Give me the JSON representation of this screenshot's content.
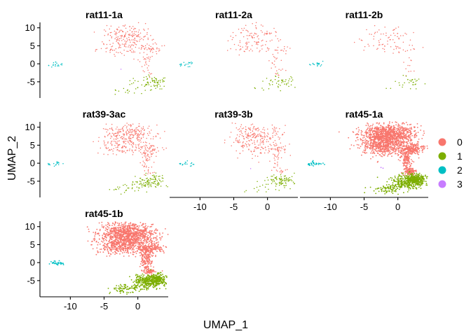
{
  "chart_data": {
    "type": "scatter",
    "xlabel": "UMAP_1",
    "ylabel": "UMAP_2",
    "xlim": [
      -14.5,
      4.5
    ],
    "ylim": [
      -9.5,
      11.5
    ],
    "x_ticks": [
      -10,
      -5,
      0
    ],
    "y_ticks": [
      10,
      5,
      0,
      -5
    ],
    "legend": {
      "position": "right",
      "entries": [
        "0",
        "1",
        "2",
        "3"
      ]
    },
    "colors": {
      "0": "#F8766D",
      "1": "#7CAE00",
      "2": "#00BFC4",
      "3": "#C77CFF"
    },
    "panels": [
      {
        "title": "rat11-1a",
        "density": 0.4,
        "row": 0,
        "col": 0,
        "show_y": true,
        "show_x": false,
        "extra_cluster3": [
          [
            -2.5,
            -1.5
          ]
        ]
      },
      {
        "title": "rat11-2a",
        "density": 0.22,
        "row": 0,
        "col": 1,
        "show_y": false,
        "show_x": false,
        "extra_cluster3": []
      },
      {
        "title": "rat11-2b",
        "density": 0.14,
        "row": 0,
        "col": 2,
        "show_y": false,
        "show_x": false,
        "extra_cluster3": []
      },
      {
        "title": "rat39-3ac",
        "density": 0.6,
        "row": 1,
        "col": 0,
        "show_y": true,
        "show_x": false,
        "extra_cluster3": []
      },
      {
        "title": "rat39-3b",
        "density": 0.45,
        "row": 1,
        "col": 1,
        "show_y": false,
        "show_x": true,
        "extra_cluster3": [
          [
            -2.5,
            -1.5
          ]
        ]
      },
      {
        "title": "rat45-1a",
        "density": 2.6,
        "row": 1,
        "col": 2,
        "show_y": false,
        "show_x": true,
        "extra_cluster3": [
          [
            -2.5,
            -1.2
          ],
          [
            -2.2,
            -1.4
          ]
        ]
      },
      {
        "title": "rat45-1b",
        "density": 2.4,
        "row": 2,
        "col": 0,
        "show_y": true,
        "show_x": true,
        "extra_cluster3": []
      }
    ]
  }
}
